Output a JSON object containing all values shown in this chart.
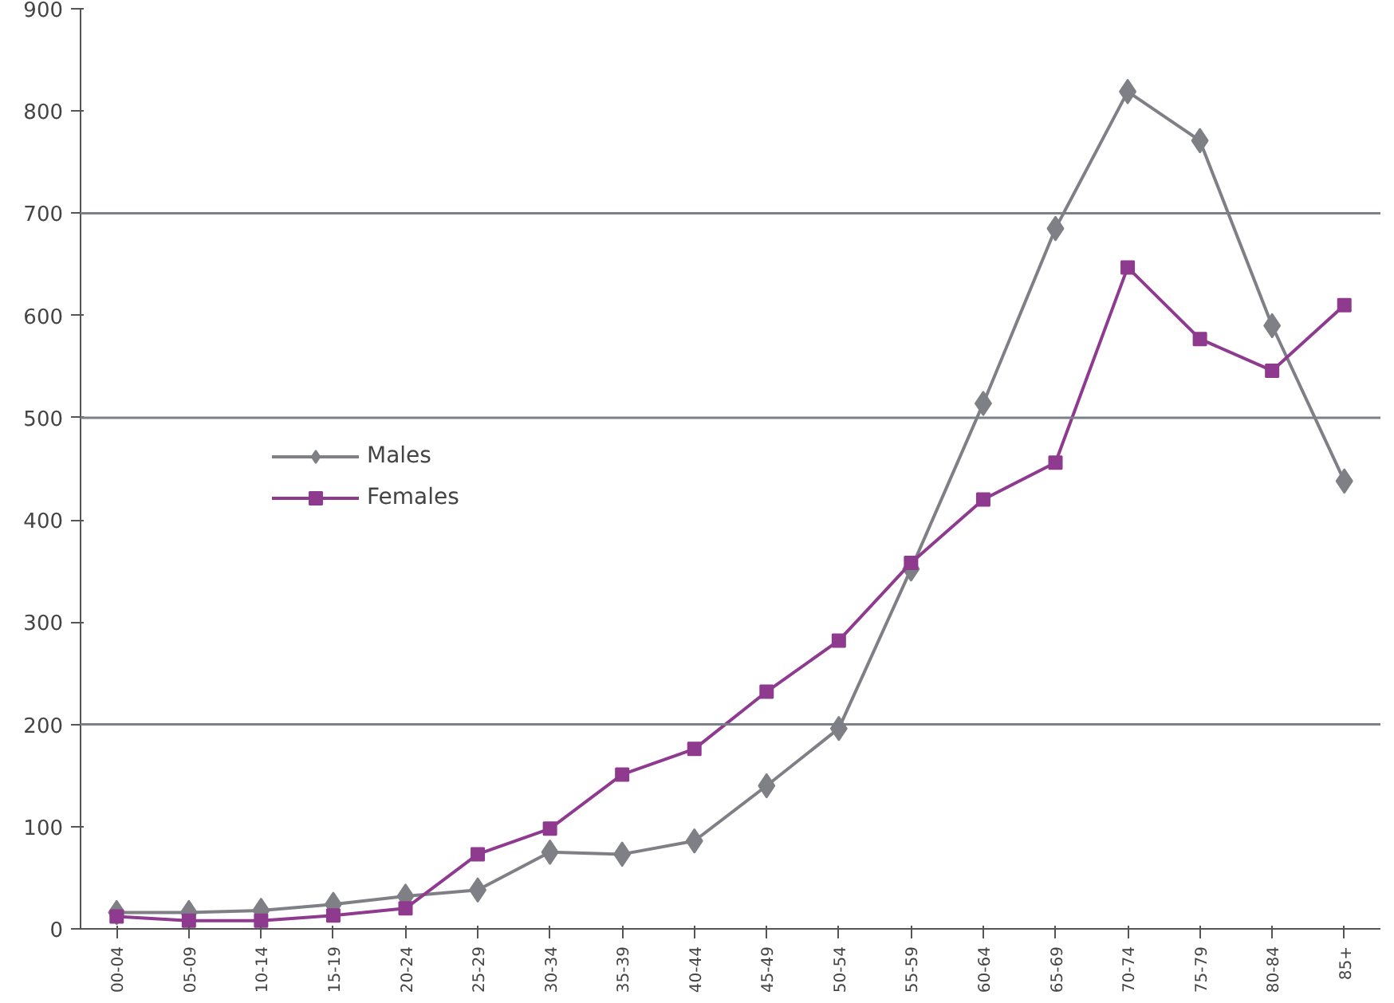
{
  "chart_data": {
    "type": "line",
    "categories": [
      "00-04",
      "05-09",
      "10-14",
      "15-19",
      "20-24",
      "25-29",
      "30-34",
      "35-39",
      "40-44",
      "45-49",
      "50-54",
      "55-59",
      "60-64",
      "65-69",
      "70-74",
      "75-79",
      "80-84",
      "85+"
    ],
    "series": [
      {
        "name": "Males",
        "color": "#7f7f86",
        "marker": "diamond",
        "values": [
          16,
          16,
          18,
          24,
          32,
          38,
          75,
          73,
          86,
          140,
          196,
          352,
          514,
          685,
          819,
          771,
          590,
          438
        ]
      },
      {
        "name": "Females",
        "color": "#8e3a8e",
        "marker": "square",
        "values": [
          12,
          8,
          8,
          13,
          20,
          73,
          98,
          151,
          176,
          232,
          282,
          358,
          420,
          456,
          647,
          577,
          546,
          610
        ]
      }
    ],
    "ylim": [
      0,
      900
    ],
    "yticks": [
      0,
      100,
      200,
      300,
      400,
      500,
      600,
      700,
      800,
      900
    ],
    "ref_lines": [
      {
        "axis": "y",
        "value": 200,
        "color": "#7a8088"
      },
      {
        "axis": "y",
        "value": 500,
        "color": "#7a8088"
      },
      {
        "axis": "y",
        "value": 700,
        "color": "#7a8088"
      }
    ],
    "grid": false,
    "legend": "left",
    "line_style": "solid"
  }
}
